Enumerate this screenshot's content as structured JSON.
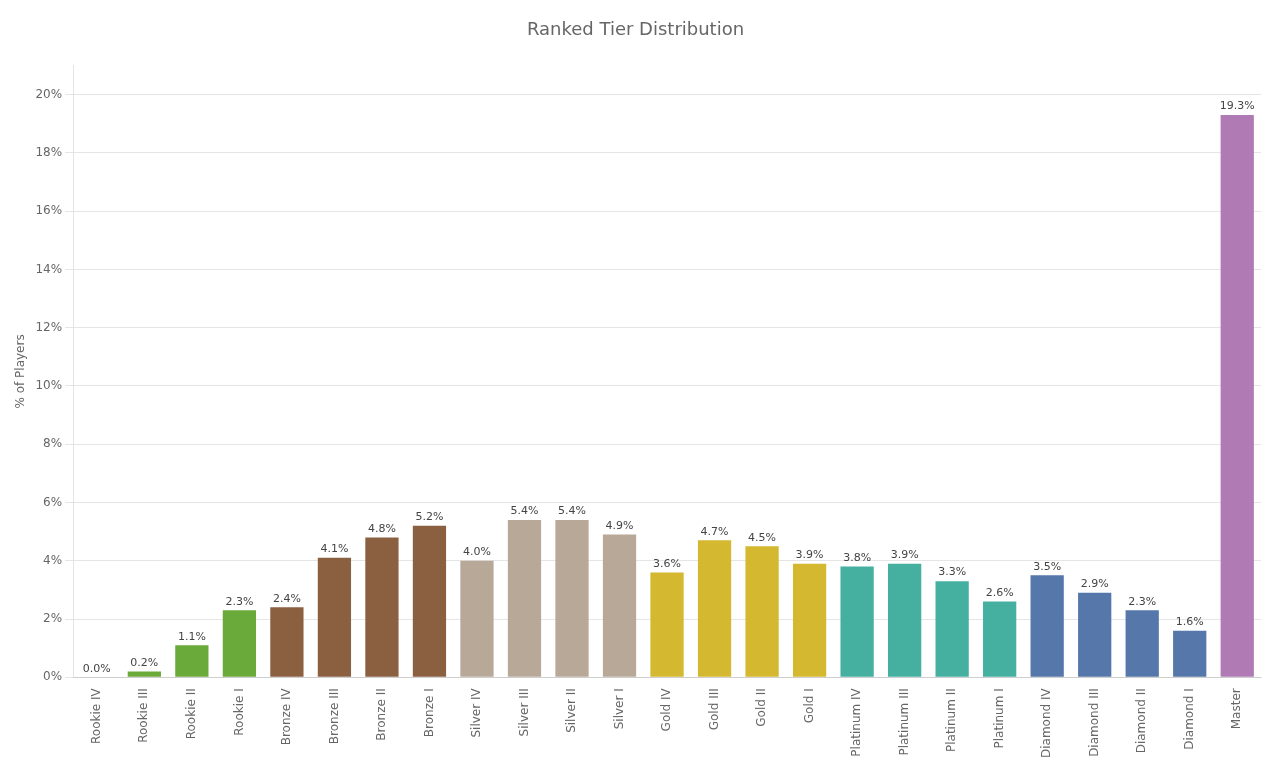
{
  "chart_data": {
    "type": "bar",
    "title": "Ranked Tier Distribution",
    "ylabel": "% of Players",
    "categories": [
      "Rookie IV",
      "Rookie III",
      "Rookie II",
      "Rookie I",
      "Bronze IV",
      "Bronze III",
      "Bronze II",
      "Bronze I",
      "Silver IV",
      "Silver III",
      "Silver II",
      "Silver I",
      "Gold IV",
      "Gold III",
      "Gold II",
      "Gold I",
      "Platinum IV",
      "Platinum III",
      "Platinum II",
      "Platinum I",
      "Diamond IV",
      "Diamond III",
      "Diamond II",
      "Diamond I",
      "Master"
    ],
    "values": [
      0.0,
      0.2,
      1.1,
      2.3,
      2.4,
      4.1,
      4.8,
      5.2,
      4.0,
      5.4,
      5.4,
      4.9,
      3.6,
      4.7,
      4.5,
      3.9,
      3.8,
      3.9,
      3.3,
      2.6,
      3.5,
      2.9,
      2.3,
      1.6,
      19.3
    ],
    "value_labels": [
      "0.0%",
      "0.2%",
      "1.1%",
      "2.3%",
      "2.4%",
      "4.1%",
      "4.8%",
      "5.2%",
      "4.0%",
      "5.4%",
      "5.4%",
      "4.9%",
      "3.6%",
      "4.7%",
      "4.5%",
      "3.9%",
      "3.8%",
      "3.9%",
      "3.3%",
      "2.6%",
      "3.5%",
      "2.9%",
      "2.3%",
      "1.6%",
      "19.3%"
    ],
    "colors": [
      "#6aaa3a",
      "#6aaa3a",
      "#6aaa3a",
      "#6aaa3a",
      "#8B6040",
      "#8B6040",
      "#8B6040",
      "#8B6040",
      "#b8a898",
      "#b8a898",
      "#b8a898",
      "#b8a898",
      "#d4b830",
      "#d4b830",
      "#d4b830",
      "#d4b830",
      "#45b0a0",
      "#45b0a0",
      "#45b0a0",
      "#45b0a0",
      "#5577aa",
      "#5577aa",
      "#5577aa",
      "#5577aa",
      "#b07ab5"
    ],
    "ylim": [
      0,
      21
    ],
    "yticks": [
      {
        "value": 0,
        "label": "0%"
      },
      {
        "value": 2,
        "label": "2%"
      },
      {
        "value": 4,
        "label": "4%"
      },
      {
        "value": 6,
        "label": "6%"
      },
      {
        "value": 8,
        "label": "8%"
      },
      {
        "value": 10,
        "label": "10%"
      },
      {
        "value": 12,
        "label": "12%"
      },
      {
        "value": 14,
        "label": "14%"
      },
      {
        "value": 16,
        "label": "16%"
      },
      {
        "value": 18,
        "label": "18%"
      },
      {
        "value": 20,
        "label": "20%"
      }
    ],
    "grid": true,
    "data_labels": true
  }
}
